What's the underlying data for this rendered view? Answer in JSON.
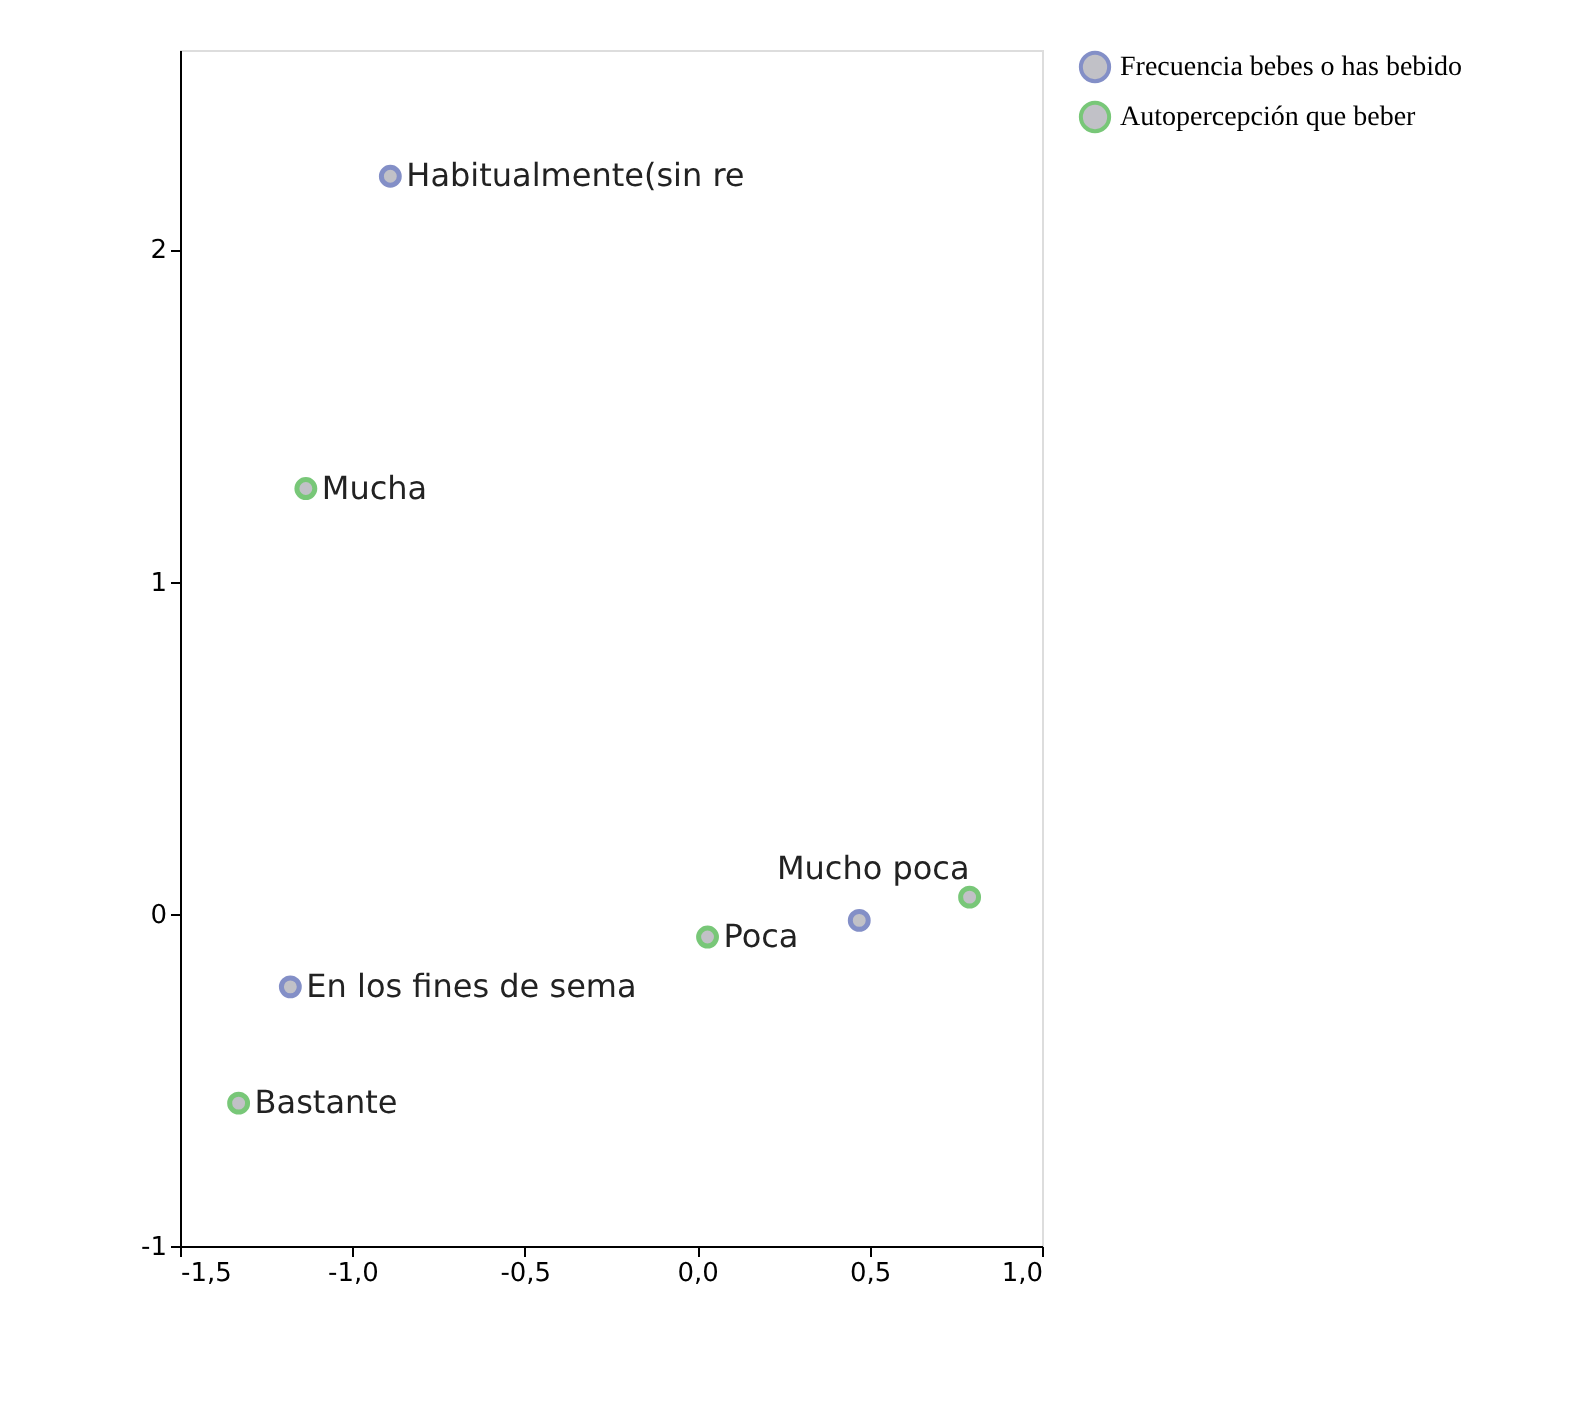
{
  "chart_data": {
    "type": "scatter",
    "series": [
      {
        "name": "Frecuencia bebes o has bebido",
        "color": "#5060b0",
        "x": [
          -0.89,
          -1.18,
          0.47
        ],
        "values": [
          2.22,
          -0.22,
          -0.02
        ]
      },
      {
        "name": "Autopercepción que beber",
        "color": "#40b040",
        "x": [
          -1.135,
          -1.33,
          0.03,
          0.79
        ],
        "values": [
          1.28,
          -0.57,
          -0.07,
          0.05
        ]
      }
    ],
    "annotations": [
      {
        "text": "Habitualmente(sin re",
        "x": -0.89,
        "y": 2.22
      },
      {
        "text": "En los fines de sema",
        "x": -1.18,
        "y": -0.22
      },
      {
        "text": "Mucha",
        "x": -1.135,
        "y": 1.28
      },
      {
        "text": "Bastante",
        "x": -1.33,
        "y": -0.57
      },
      {
        "text": "Poca",
        "x": 0.03,
        "y": -0.07
      },
      {
        "text": "Mucho poca",
        "x": 0.79,
        "y": 0.05
      }
    ],
    "xlim": [
      -1.5,
      1.0
    ],
    "ylim": [
      -1.0,
      2.6
    ],
    "xticks": [
      {
        "value": -1.5,
        "label": "-1,5"
      },
      {
        "value": -1.0,
        "label": "-1,0"
      },
      {
        "value": -0.5,
        "label": "-0,5"
      },
      {
        "value": 0.0,
        "label": "0,0"
      },
      {
        "value": 0.5,
        "label": "0,5"
      },
      {
        "value": 1.0,
        "label": "1,0"
      }
    ],
    "yticks": [
      -1,
      0,
      1,
      2
    ],
    "grid": false,
    "legend": "right",
    "marker": "circle"
  }
}
